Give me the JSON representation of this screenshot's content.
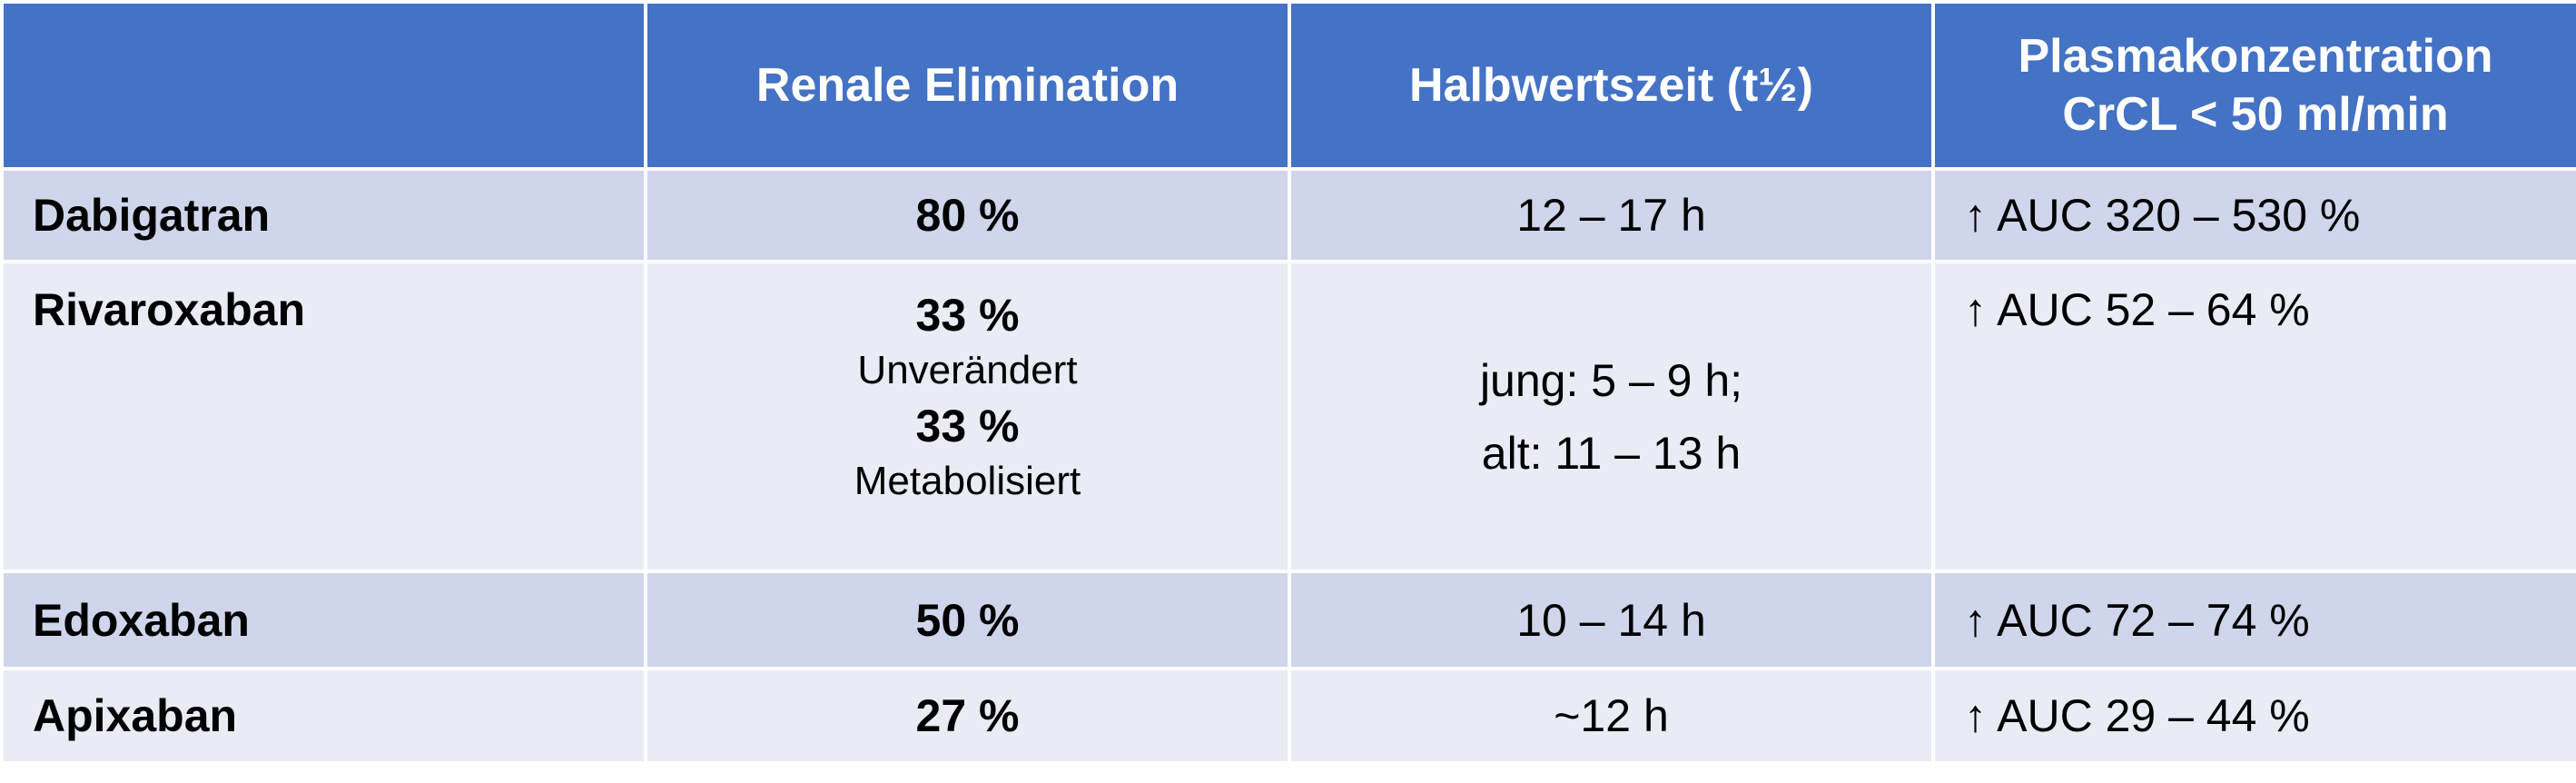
{
  "header": {
    "col1": "",
    "col2": "Renale Elimination",
    "col3": "Halbwertszeit (t½)",
    "col4_line1": "Plasmakonzentration",
    "col4_line2": "CrCL < 50 ml/min"
  },
  "rows": [
    {
      "drug": "Dabigatran",
      "renal": "80 %",
      "halflife": "12 – 17 h",
      "plasma": "↑ AUC 320 – 530 %"
    },
    {
      "drug": "Rivaroxaban",
      "renal_a": "33 %",
      "renal_a_note": "Unverändert",
      "renal_b": "33 %",
      "renal_b_note": "Metabolisiert",
      "halflife_line1": "jung: 5 – 9 h;",
      "halflife_line2": "alt: 11 – 13 h",
      "plasma": "↑ AUC 52 – 64 %"
    },
    {
      "drug": "Edoxaban",
      "renal": "50 %",
      "halflife": "10 – 14 h",
      "plasma": "↑ AUC 72 – 74 %"
    },
    {
      "drug": "Apixaban",
      "renal": "27 %",
      "halflife": "~12 h",
      "plasma": "↑ AUC 29 – 44 %"
    }
  ],
  "colors": {
    "header_bg": "#4472c4",
    "row_odd_bg": "#cfd5ea",
    "row_even_bg": "#e9ebf5"
  }
}
